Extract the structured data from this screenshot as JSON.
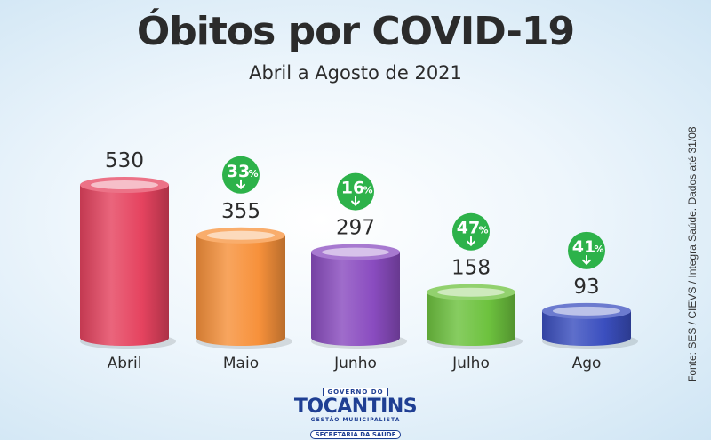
{
  "chart_data": {
    "type": "bar",
    "title": "Óbitos por COVID-19",
    "subtitle": "Abril a Agosto de 2021",
    "categories": [
      "Abril",
      "Maio",
      "Junho",
      "Julho",
      "Ago"
    ],
    "values": [
      530,
      355,
      297,
      158,
      93
    ],
    "decreases": [
      null,
      "33",
      "16",
      "47",
      "41"
    ],
    "percent_sign": "%",
    "ylim": [
      0,
      530
    ],
    "grid": false,
    "colors": [
      "#e5435f",
      "#f7913b",
      "#8a4cc0",
      "#6dc23e",
      "#3b4fbf"
    ],
    "badge_color": "#2db24a"
  },
  "source": "Fonte: SES / CIEVS / Integra Saúde. Dados até 31/08",
  "logo": {
    "top": "GOVERNO DO",
    "main": "TOCANTINS",
    "sub": "GESTÃO MUNICIPALISTA",
    "dept": "SECRETARIA DA SAÚDE"
  }
}
